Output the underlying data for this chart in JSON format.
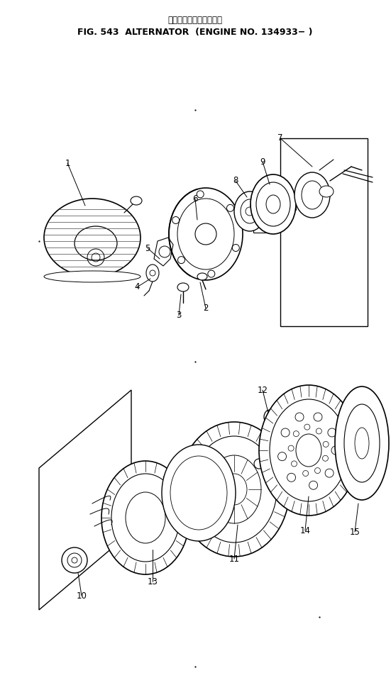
{
  "title_line1": "オルタネータ　適用号機",
  "title_line2": "FIG. 543  ALTERNATOR  (ENGINE NO. 134933− )",
  "bg_color": "#ffffff",
  "fig_width": 5.51,
  "fig_height": 9.73,
  "dpi": 100
}
